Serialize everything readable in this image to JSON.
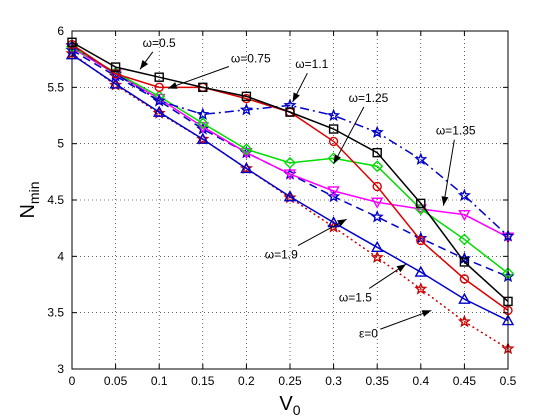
{
  "chart_data": {
    "type": "line",
    "xlabel": "V",
    "xlabel_sub": "0",
    "ylabel": "N",
    "ylabel_sub": "min",
    "xlim": [
      0,
      0.5
    ],
    "ylim": [
      3,
      6
    ],
    "xticks": [
      0,
      0.05,
      0.1,
      0.15,
      0.2,
      0.25,
      0.3,
      0.35,
      0.4,
      0.45,
      0.5
    ],
    "xtick_labels": [
      "0",
      "0.05",
      "0.1",
      "0.15",
      "0.2",
      "0.25",
      "0.3",
      "0.35",
      "0.4",
      "0.45",
      "0.5"
    ],
    "yticks": [
      3,
      3.5,
      4,
      4.5,
      5,
      5.5,
      6
    ],
    "ytick_labels": [
      "3",
      "3.5",
      "4",
      "4.5",
      "5",
      "5.5",
      "6"
    ],
    "grid": true,
    "series": [
      {
        "key": "s_eps0",
        "color": "#cc0000",
        "dash": "dotted",
        "marker": "star",
        "x": [
          0,
          0.05,
          0.1,
          0.15,
          0.2,
          0.25,
          0.3,
          0.35,
          0.4,
          0.45,
          0.5
        ],
        "y": [
          5.8,
          5.52,
          5.27,
          5.04,
          4.78,
          4.52,
          4.26,
          3.99,
          3.71,
          3.42,
          3.18
        ]
      },
      {
        "key": "s_15",
        "color": "#0000cc",
        "dash": "solid",
        "marker": "triangle-up",
        "x": [
          0,
          0.05,
          0.1,
          0.15,
          0.2,
          0.25,
          0.3,
          0.35,
          0.4,
          0.45,
          0.5
        ],
        "y": [
          5.79,
          5.53,
          5.28,
          5.04,
          4.78,
          4.53,
          4.3,
          4.08,
          3.86,
          3.62,
          3.43
        ]
      },
      {
        "key": "s_19",
        "color": "#0000cc",
        "dash": "dashed",
        "marker": "star",
        "x": [
          0,
          0.05,
          0.1,
          0.15,
          0.2,
          0.25,
          0.3,
          0.35,
          0.4,
          0.45,
          0.5
        ],
        "y": [
          5.83,
          5.6,
          5.38,
          5.13,
          4.92,
          4.73,
          4.53,
          4.35,
          4.16,
          3.98,
          3.82
        ]
      },
      {
        "key": "s_135",
        "color": "#ff00ff",
        "dash": "solid",
        "marker": "triangle-down",
        "x": [
          0,
          0.05,
          0.1,
          0.15,
          0.2,
          0.25,
          0.3,
          0.35,
          0.4,
          0.45,
          0.5
        ],
        "y": [
          5.85,
          5.62,
          5.4,
          5.15,
          4.92,
          4.73,
          4.58,
          4.48,
          4.42,
          4.37,
          4.17
        ]
      },
      {
        "key": "s_125",
        "color": "#00dd00",
        "dash": "solid",
        "marker": "diamond",
        "x": [
          0,
          0.05,
          0.1,
          0.15,
          0.2,
          0.25,
          0.3,
          0.35,
          0.4,
          0.45,
          0.5
        ],
        "y": [
          5.86,
          5.63,
          5.42,
          5.18,
          4.95,
          4.83,
          4.87,
          4.8,
          4.42,
          4.15,
          3.85
        ]
      },
      {
        "key": "s_11",
        "color": "#0000cc",
        "dash": "dashdot",
        "marker": "star",
        "x": [
          0,
          0.05,
          0.1,
          0.15,
          0.2,
          0.25,
          0.3,
          0.35,
          0.4,
          0.45,
          0.5
        ],
        "y": [
          5.87,
          5.62,
          5.38,
          5.26,
          5.3,
          5.34,
          5.25,
          5.1,
          4.86,
          4.54,
          4.18
        ]
      },
      {
        "key": "s_075",
        "color": "#dd0000",
        "dash": "solid",
        "marker": "circle",
        "x": [
          0,
          0.05,
          0.1,
          0.15,
          0.2,
          0.25,
          0.3,
          0.35,
          0.4,
          0.45,
          0.5
        ],
        "y": [
          5.88,
          5.62,
          5.5,
          5.5,
          5.4,
          5.28,
          5.02,
          4.62,
          4.14,
          3.8,
          3.52
        ]
      },
      {
        "key": "s_05",
        "color": "#000000",
        "dash": "solid",
        "marker": "square",
        "x": [
          0,
          0.05,
          0.1,
          0.15,
          0.2,
          0.25,
          0.3,
          0.35,
          0.4,
          0.45,
          0.5
        ],
        "y": [
          5.9,
          5.68,
          5.59,
          5.5,
          5.42,
          5.28,
          5.13,
          4.92,
          4.47,
          3.95,
          3.6
        ]
      }
    ],
    "annotations": [
      {
        "text": "ω=0.5",
        "tx": 0.1,
        "ty": 5.86,
        "ax": 0.078,
        "ay": 5.66
      },
      {
        "text": "ω=0.75",
        "tx": 0.205,
        "ty": 5.72,
        "ax": 0.11,
        "ay": 5.49
      },
      {
        "text": "ω=1.1",
        "tx": 0.275,
        "ty": 5.67,
        "ax": 0.253,
        "ay": 5.37
      },
      {
        "text": "ω=1.25",
        "tx": 0.34,
        "ty": 5.37,
        "ax": 0.3,
        "ay": 4.82
      },
      {
        "text": "ω=1.35",
        "tx": 0.44,
        "ty": 5.08,
        "ax": 0.426,
        "ay": 4.45
      },
      {
        "text": "ω=1.9",
        "tx": 0.24,
        "ty": 3.98,
        "ax": 0.315,
        "ay": 4.33
      },
      {
        "text": "ω=1.5",
        "tx": 0.325,
        "ty": 3.6,
        "ax": 0.383,
        "ay": 3.93
      },
      {
        "text": "ε=0",
        "tx": 0.34,
        "ty": 3.28,
        "ax": 0.412,
        "ay": 3.52
      }
    ]
  }
}
